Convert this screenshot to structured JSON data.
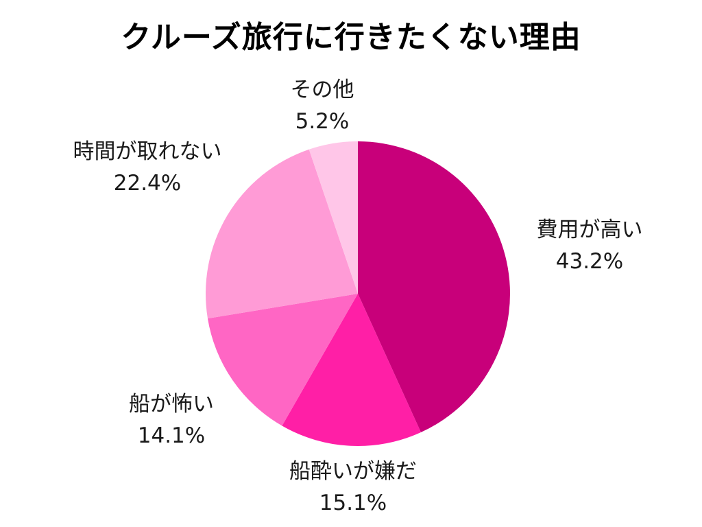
{
  "chart_data": {
    "type": "pie",
    "title": "クルーズ旅行に行きたくない理由",
    "slices": [
      {
        "label": "費用が高い",
        "value": 43.2,
        "value_text": "43.2%",
        "color": "#c8007a"
      },
      {
        "label": "船酔いが嫌だ",
        "value": 15.1,
        "value_text": "15.1%",
        "color": "#ff1fa6"
      },
      {
        "label": "船が怖い",
        "value": 14.1,
        "value_text": "14.1%",
        "color": "#ff66c4"
      },
      {
        "label": "時間が取れない",
        "value": 22.4,
        "value_text": "22.4%",
        "color": "#ff9bd6"
      },
      {
        "label": "その他",
        "value": 5.2,
        "value_text": "5.2%",
        "color": "#ffc6e8"
      }
    ]
  }
}
